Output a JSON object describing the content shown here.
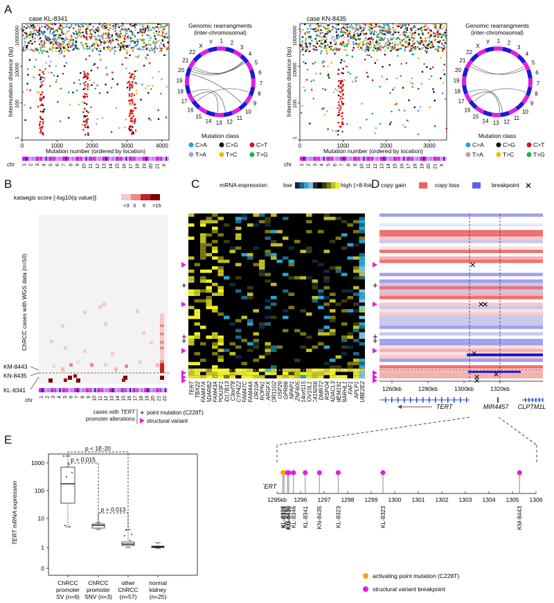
{
  "panels": {
    "a": "A",
    "b": "B",
    "c": "C",
    "d": "D",
    "e": "E"
  },
  "panelA": {
    "left": {
      "case": "case KL-8341",
      "xticks": [
        "0",
        "1000",
        "2000",
        "3000",
        "4000"
      ],
      "xmax": 4200,
      "chr": [
        "1",
        "2",
        "3",
        "4",
        "5",
        "6",
        "7",
        "8",
        "9",
        "10",
        "11",
        "12",
        "13",
        "14",
        "15",
        "16",
        "17",
        "18",
        "19",
        "20",
        "21",
        "X"
      ]
    },
    "right": {
      "case": "case KN-8435",
      "xticks": [
        "0",
        "1000",
        "2000",
        "3000"
      ],
      "xmax": 3400,
      "chr": [
        "1",
        "2",
        "3",
        "4",
        "5",
        "6",
        "7",
        "8",
        "9",
        "10",
        "11",
        "12",
        "13",
        "14",
        "15",
        "16",
        "17",
        "18",
        "19",
        "20",
        "21",
        "X"
      ]
    },
    "ylabel": "Intermutation distance (bp)",
    "yticks": [
      "1",
      "100",
      "10000",
      "1000000"
    ],
    "xlabel": "Mutation number (ordered by location)",
    "chr_label": "chr",
    "circos_title1": "Genomic rearrangments",
    "circos_title2": "(inter-chromosomal)",
    "circos_labels": [
      "1",
      "2",
      "3",
      "4",
      "5",
      "6",
      "7",
      "8",
      "9",
      "10",
      "11",
      "12",
      "13",
      "14",
      "15",
      "16",
      "17",
      "18",
      "19",
      "20",
      "21",
      "22",
      "X",
      "Y"
    ],
    "mutation_class_title": "Mutation class",
    "mutation_classes": [
      {
        "label": "C>A",
        "color": "#1ba1e2"
      },
      {
        "label": "C>G",
        "color": "#111111"
      },
      {
        "label": "C>T",
        "color": "#e01010"
      },
      {
        "label": "T>A",
        "color": "#b59ccc"
      },
      {
        "label": "T>C",
        "color": "#f2b800"
      },
      {
        "label": "T>G",
        "color": "#26a84a"
      }
    ]
  },
  "panelB": {
    "legend_title": "kataegis score [-log10(q value)]:",
    "legend_ticks": [
      "<3",
      "3",
      "6",
      ">15"
    ],
    "ylabel": "ChRCC cases with WGS data (n=50)",
    "rows": [
      "KM-8443",
      "KN-8435",
      "KL-8341"
    ],
    "chr_label": "chr",
    "chr": [
      "1",
      "2",
      "3",
      "4",
      "5",
      "6",
      "7",
      "8",
      "9",
      "10",
      "11",
      "12",
      "13",
      "14",
      "15",
      "16",
      "17",
      "18",
      "19",
      "20",
      "21",
      "22"
    ],
    "legend_cases1": "cases with",
    "legend_cases2": "TERT",
    "legend_cases3": "promoter alterations",
    "legend_point": "point mutation (C228T)",
    "legend_sv": "structural variant"
  },
  "panelC": {
    "legend_title": "mRNA expression:",
    "legend_low": "low",
    "legend_high": "high (>8-fold)",
    "genes": [
      "TERT",
      "TBX22",
      "FAM47A",
      "ADARB2",
      "FAM43A",
      "POU3F1",
      "HSD17B13",
      "C3orf78",
      "CYP4Z2",
      "FAM47C",
      "FAM44A",
      "OR10A",
      "ROPN1",
      "ARGFX",
      "OR11G2",
      "USP29",
      "GPR86",
      "NPAP1",
      "ZNF605",
      "C14orf115",
      "MOV10L1",
      "LOC415056",
      "DMRT2",
      "RSPO4",
      "AADACL3",
      "TMEM191",
      "BARHL1",
      "FAF1",
      "APLP1",
      "UBE2E2"
    ]
  },
  "panelD": {
    "legend_gain": "copy gain",
    "legend_loss": "copy loss",
    "legend_bp": "breakpoint",
    "xticks": [
      "1260kb",
      "1280kb",
      "1300kb",
      "1320kb"
    ],
    "genes": [
      "TERT",
      "MIR4457",
      "CLPTM1L"
    ]
  },
  "panelE": {
    "ylabel": "TERT mRNA expression",
    "yticks": [
      "0",
      "1",
      "10",
      "100",
      "1000"
    ],
    "groups": [
      "ChRCC promoter SV (n=6)",
      "ChRCC promoter SNV (n=3)",
      "other ChRCC (n=57)",
      "normal kidney (n=25)"
    ],
    "group_lines": [
      [
        "ChRCC",
        "promoter",
        "SV (n=6)"
      ],
      [
        "ChRCC",
        "promoter",
        "SNV (n=3)"
      ],
      [
        "other",
        "ChRCC",
        "(n=57)"
      ],
      [
        "normal",
        "kidney",
        "(n=25)"
      ]
    ],
    "pvalues": [
      "p < 1E-20",
      "p = 0.015",
      "p = 0.013"
    ]
  },
  "lollipop": {
    "gene": "TERT",
    "xticks": [
      "1295kb",
      "1296",
      "1297",
      "1298",
      "1299",
      "1300",
      "1301",
      "1302",
      "1303",
      "1304",
      "1305",
      "1306"
    ],
    "samples": [
      {
        "label": "KL-8328",
        "pos": 1295.25,
        "type": "point"
      },
      {
        "label": "KL-8331",
        "pos": 1295.3,
        "type": "point"
      },
      {
        "label": "KN-8430",
        "pos": 1295.45,
        "type": "sv"
      },
      {
        "label": "KM-8436",
        "pos": 1295.5,
        "type": "sv"
      },
      {
        "label": "KL-8346",
        "pos": 1295.7,
        "type": "sv"
      },
      {
        "label": "KL-8341",
        "pos": 1296.2,
        "type": "sv"
      },
      {
        "label": "KN-8435",
        "pos": 1296.8,
        "type": "sv"
      },
      {
        "label": "KL-8323",
        "pos": 1297.6,
        "type": "sv"
      },
      {
        "label": "KL-8323",
        "pos": 1299.5,
        "type": "sv"
      },
      {
        "label": "KM-8443",
        "pos": 1305.3,
        "type": "sv"
      }
    ],
    "legend_point": "activating point mutation (C228T)",
    "legend_sv": "structural variant breakpoint"
  },
  "colors": {
    "magenta": "#e01ee0",
    "blue": "#1a1ad6",
    "red": "#d01010",
    "orange": "#f2a900"
  }
}
